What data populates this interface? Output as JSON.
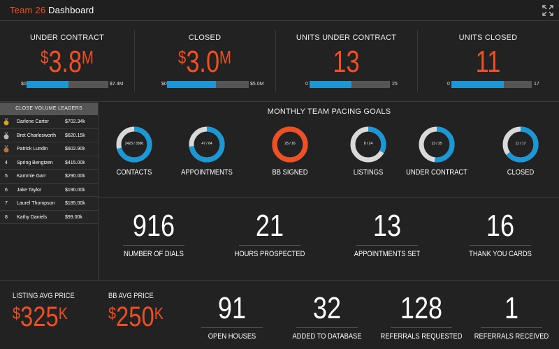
{
  "header": {
    "team": "Team 26",
    "title": "Dashboard"
  },
  "kpis": [
    {
      "label": "UNDER CONTRACT",
      "prefix": "$",
      "value": "3.8",
      "suffix": "M",
      "bar_min": "$0",
      "bar_max": "$7.4M",
      "progress": 0.51
    },
    {
      "label": "CLOSED",
      "prefix": "$",
      "value": "3.0",
      "suffix": "M",
      "bar_min": "$0",
      "bar_max": "$5.0M",
      "progress": 0.6
    },
    {
      "label": "UNITS UNDER CONTRACT",
      "prefix": "",
      "value": "13",
      "suffix": "",
      "bar_min": "0",
      "bar_max": "25",
      "progress": 0.52
    },
    {
      "label": "UNITS CLOSED",
      "prefix": "",
      "value": "11",
      "suffix": "",
      "bar_min": "0",
      "bar_max": "17",
      "progress": 0.65
    }
  ],
  "leaders": {
    "title": "CLOSE VOLUME LEADERS",
    "rows": [
      {
        "rank": "1",
        "name": "Darlene Carter",
        "amount": "$702.34k",
        "medal": "gold"
      },
      {
        "rank": "2",
        "name": "Bret Charlesworth",
        "amount": "$620.15k",
        "medal": "silver"
      },
      {
        "rank": "3",
        "name": "Patrick Lundin",
        "amount": "$602.90k",
        "medal": "bronze"
      },
      {
        "rank": "4",
        "name": "Spring Bengtzen",
        "amount": "$415.00k",
        "medal": ""
      },
      {
        "rank": "5",
        "name": "Kammie Garr",
        "amount": "$290.00k",
        "medal": ""
      },
      {
        "rank": "6",
        "name": "Jake Taylor",
        "amount": "$190.00k",
        "medal": ""
      },
      {
        "rank": "7",
        "name": "Laurel Thompson",
        "amount": "$185.00k",
        "medal": ""
      },
      {
        "rank": "8",
        "name": "Kathy Daniels",
        "amount": "$99.00k",
        "medal": ""
      }
    ]
  },
  "pacing": {
    "title": "MONTHLY TEAM PACING GOALS",
    "goals": [
      {
        "label": "CONTACTS",
        "text": "2423 / 3390",
        "progress": 0.71,
        "status": "blue"
      },
      {
        "label": "APPOINTMENTS",
        "text": "47 / 64",
        "progress": 0.73,
        "status": "blue"
      },
      {
        "label": "BB SIGNED",
        "text": "25 / 16",
        "progress": 1.0,
        "status": "orange"
      },
      {
        "label": "LISTINGS",
        "text": "8 / 24",
        "progress": 0.33,
        "status": "blue"
      },
      {
        "label": "UNDER CONTRACT",
        "text": "13 / 25",
        "progress": 0.52,
        "status": "blue"
      },
      {
        "label": "CLOSED",
        "text": "11 / 17",
        "progress": 0.65,
        "status": "blue"
      }
    ]
  },
  "activity": [
    {
      "value": "916",
      "label": "NUMBER OF DIALS"
    },
    {
      "value": "21",
      "label": "HOURS PROSPECTED"
    },
    {
      "value": "13",
      "label": "APPOINTMENTS SET"
    },
    {
      "value": "16",
      "label": "THANK YOU CARDS"
    }
  ],
  "prices": [
    {
      "label": "LISTING AVG PRICE",
      "prefix": "$",
      "value": "325",
      "suffix": "K"
    },
    {
      "label": "BB AVG PRICE",
      "prefix": "$",
      "value": "250",
      "suffix": "K"
    }
  ],
  "bottom_stats": [
    {
      "value": "91",
      "label": "OPEN HOUSES"
    },
    {
      "value": "32",
      "label": "ADDED TO DATABASE"
    },
    {
      "value": "128",
      "label": "REFERRALS REQUESTED"
    },
    {
      "value": "1",
      "label": "REFERRALS RECEIVED"
    }
  ],
  "colors": {
    "accent": "#f04e23",
    "progress_blue": "#1a97d4",
    "track": "#555555",
    "donut_track": "#d9d9d9",
    "gold": "#d9a21b",
    "silver": "#b9b9b9",
    "bronze": "#c0703a"
  }
}
